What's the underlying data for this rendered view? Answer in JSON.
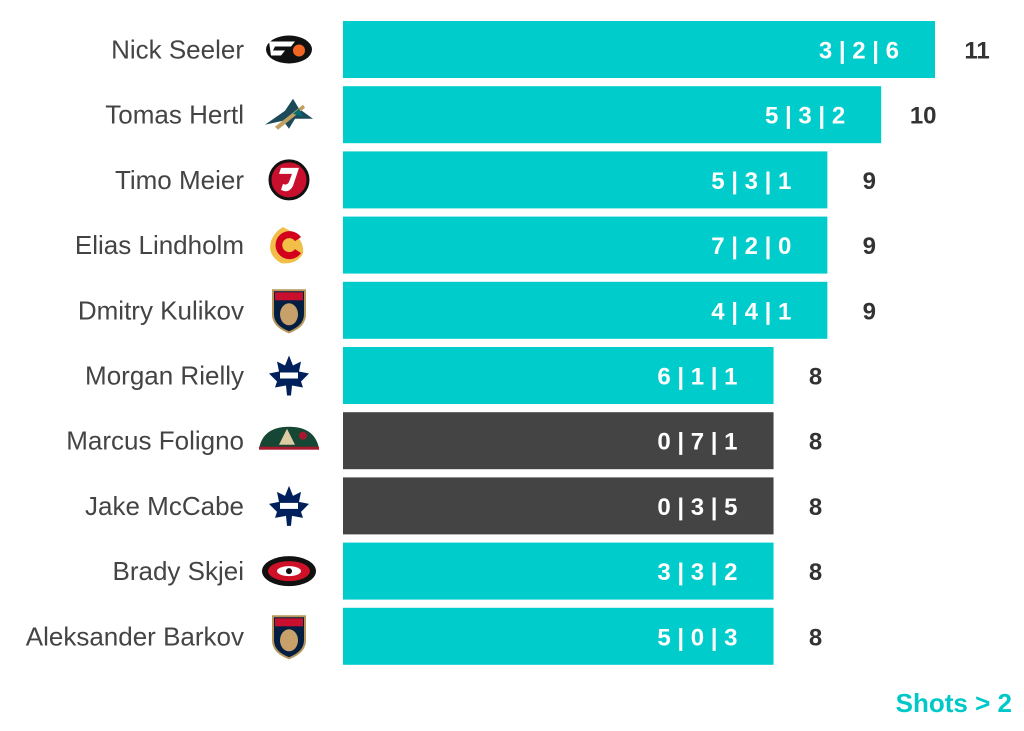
{
  "chart_data": {
    "type": "bar",
    "orientation": "horizontal",
    "title": "",
    "xlabel": "",
    "ylabel": "",
    "xlim": [
      0,
      11
    ],
    "grid": false,
    "categories": [
      "Nick Seeler",
      "Tomas Hertl",
      "Timo Meier",
      "Elias Lindholm",
      "Dmitry Kulikov",
      "Morgan Rielly",
      "Marcus Foligno",
      "Jake McCabe",
      "Brady Skjei",
      "Aleksander Barkov"
    ],
    "values": [
      11,
      10,
      9,
      9,
      9,
      8,
      8,
      8,
      8,
      8
    ],
    "breakdown_labels": [
      "3 | 2 | 6",
      "5 | 3 | 2",
      "5 | 3 | 1",
      "7 | 2 | 0",
      "4 | 4 | 1",
      "6 | 1 | 1",
      "0 | 7 | 1",
      "0 | 3 | 5",
      "3 | 3 | 2",
      "5 | 0 | 3"
    ],
    "teams": [
      "PHI",
      "SJS",
      "NJD",
      "CGY",
      "FLA",
      "TOR",
      "MIN",
      "TOR",
      "CAR",
      "FLA"
    ],
    "highlight": [
      true,
      true,
      true,
      true,
      true,
      true,
      false,
      false,
      true,
      true
    ],
    "colors": {
      "highlight": "#00cccc",
      "default": "#444444",
      "name_text": "#444444",
      "value_text": "#333333",
      "bar_label_text": "#ffffff",
      "footer_text": "#00c8c8"
    }
  },
  "footer": {
    "note": "Shots > 2"
  }
}
